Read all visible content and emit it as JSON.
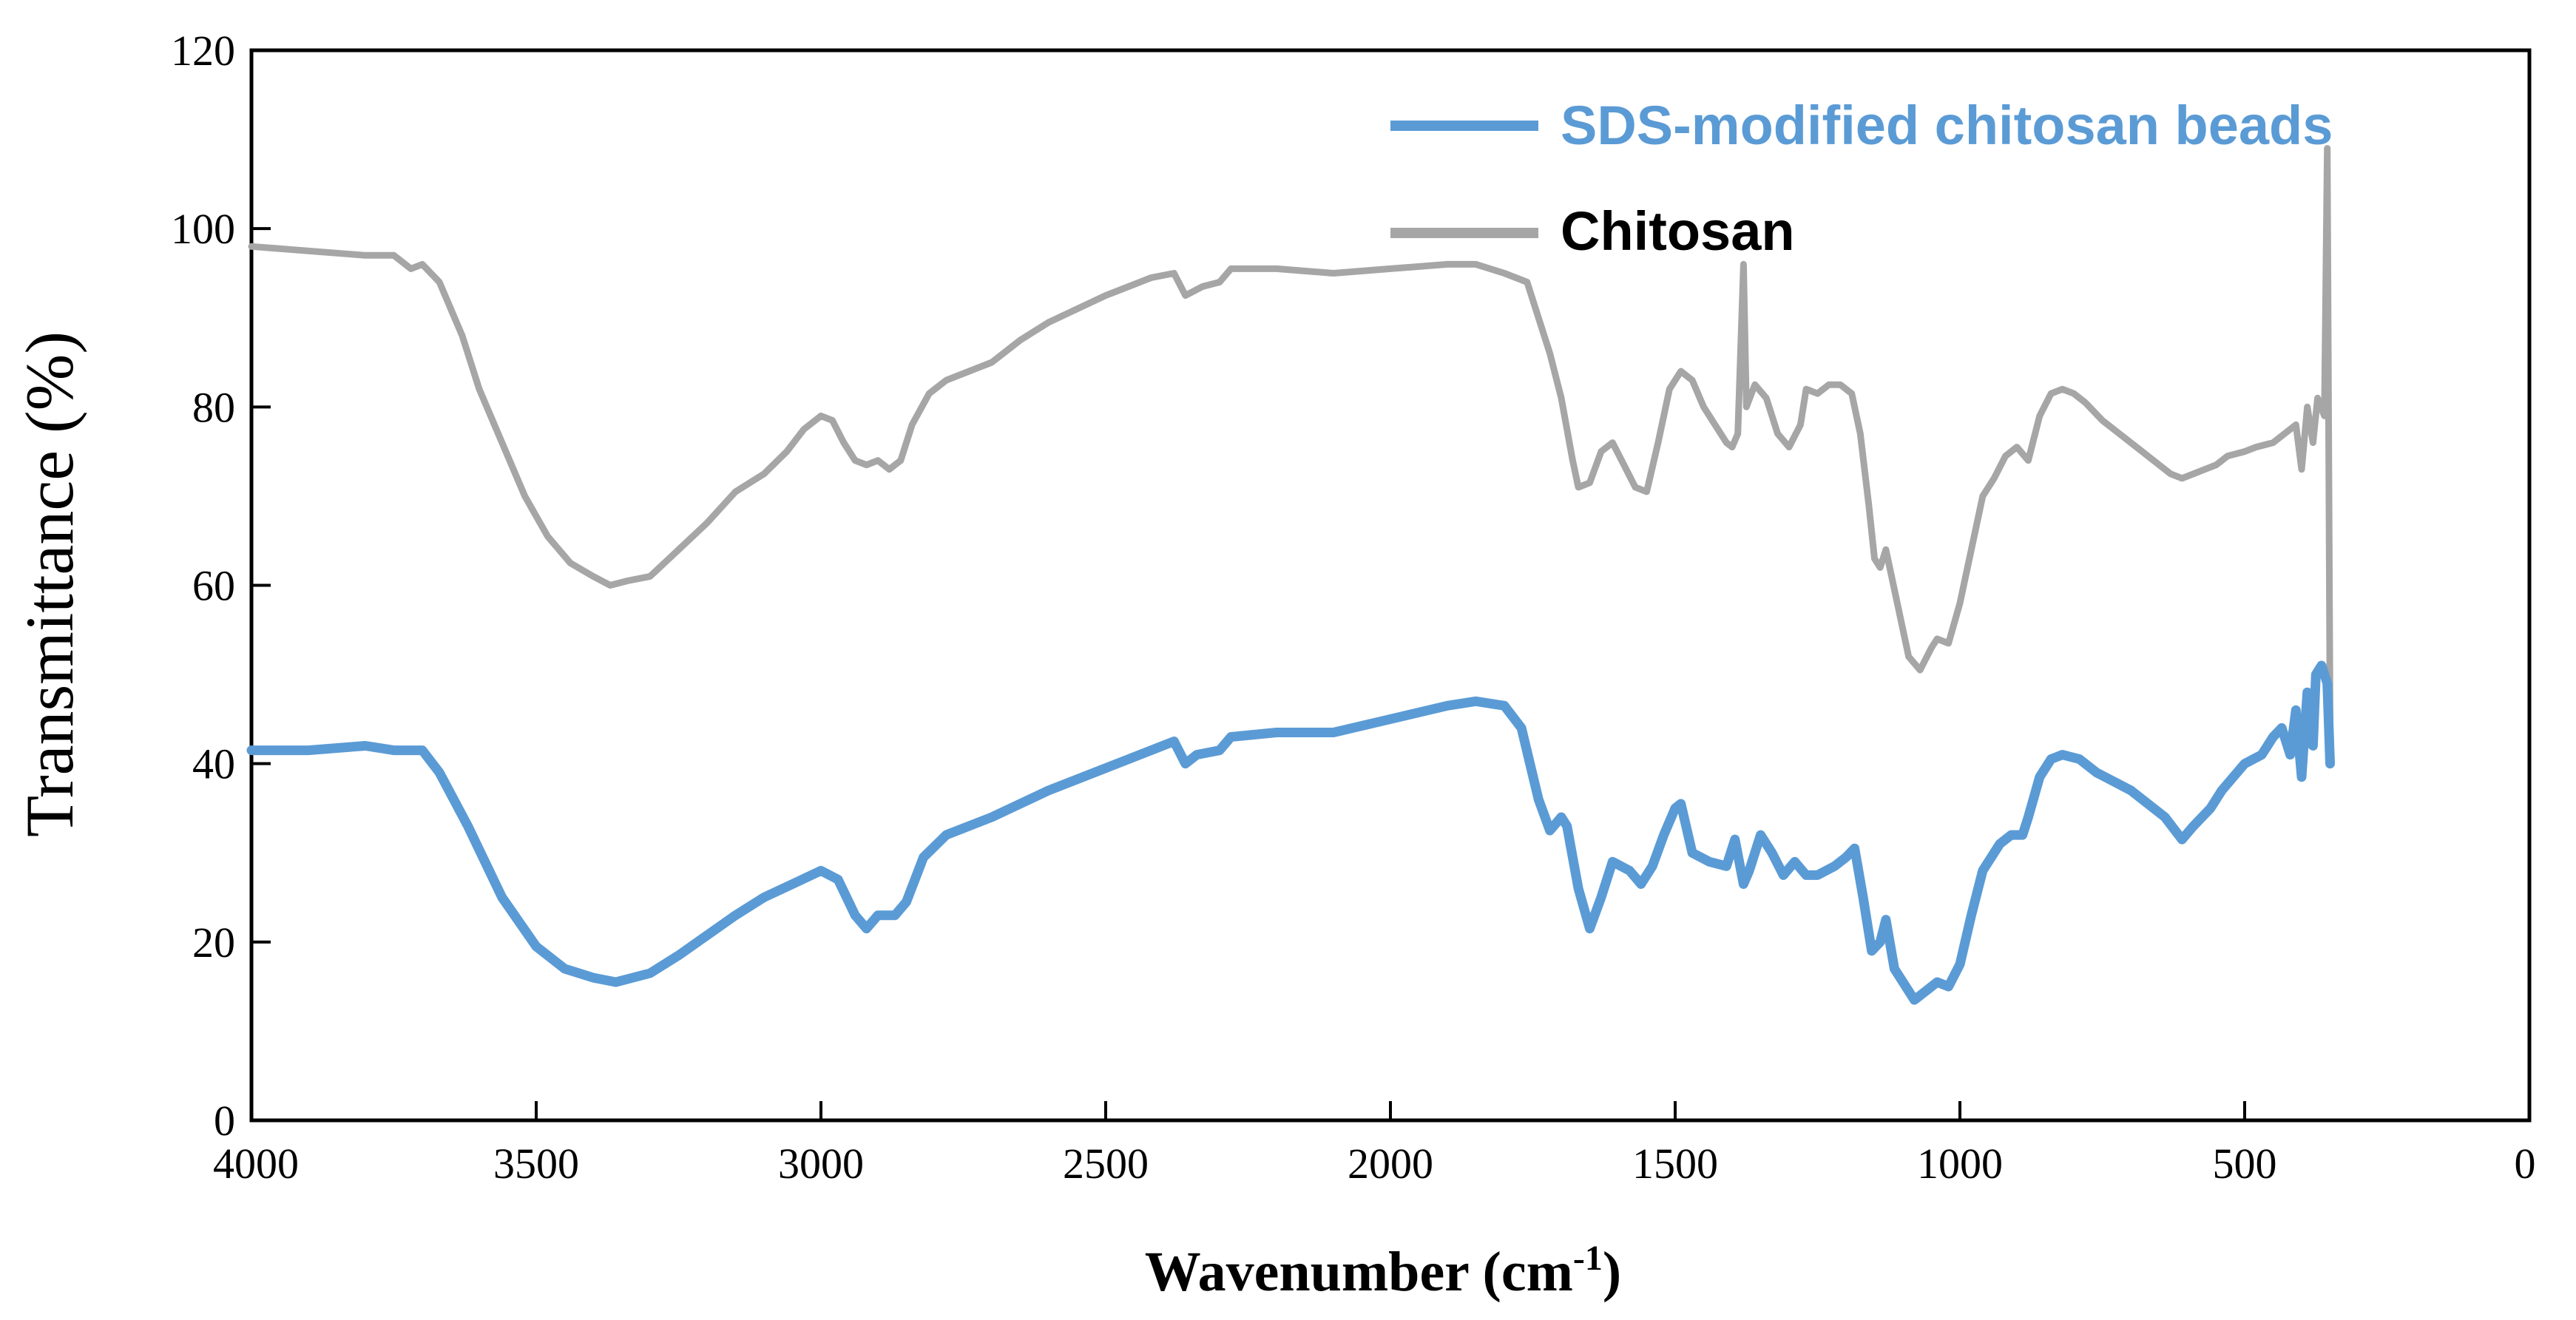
{
  "chart_data": {
    "type": "line",
    "title": "",
    "xlabel": "Wavenumber (cm",
    "xlabel_sup": "-1",
    "xlabel_end": ")",
    "ylabel": "Transmittance (%)",
    "xlim": [
      4000,
      0
    ],
    "ylim": [
      0,
      120
    ],
    "x_ticks": [
      4000,
      3500,
      3000,
      2500,
      2000,
      1500,
      1000,
      500,
      0
    ],
    "y_ticks": [
      0,
      20,
      40,
      60,
      80,
      100,
      120
    ],
    "grid": false,
    "legend_position": "top-right",
    "series": [
      {
        "name": "SDS-modified chitosan beads",
        "color": "#5B9BD5",
        "points": [
          [
            4000,
            41.5
          ],
          [
            3900,
            41.5
          ],
          [
            3800,
            42
          ],
          [
            3750,
            41.5
          ],
          [
            3700,
            41.5
          ],
          [
            3670,
            39
          ],
          [
            3620,
            33
          ],
          [
            3560,
            25
          ],
          [
            3500,
            19.5
          ],
          [
            3450,
            17
          ],
          [
            3400,
            16
          ],
          [
            3360,
            15.5
          ],
          [
            3300,
            16.5
          ],
          [
            3250,
            18.5
          ],
          [
            3150,
            23
          ],
          [
            3100,
            25
          ],
          [
            3050,
            26.5
          ],
          [
            3000,
            28
          ],
          [
            2970,
            27
          ],
          [
            2940,
            23
          ],
          [
            2920,
            21.5
          ],
          [
            2900,
            23
          ],
          [
            2870,
            23
          ],
          [
            2850,
            24.5
          ],
          [
            2820,
            29.5
          ],
          [
            2780,
            32
          ],
          [
            2700,
            34
          ],
          [
            2600,
            37
          ],
          [
            2500,
            39.5
          ],
          [
            2400,
            42
          ],
          [
            2380,
            42.5
          ],
          [
            2360,
            40
          ],
          [
            2340,
            41
          ],
          [
            2300,
            41.5
          ],
          [
            2280,
            43
          ],
          [
            2200,
            43.5
          ],
          [
            2100,
            43.5
          ],
          [
            2000,
            45
          ],
          [
            1900,
            46.5
          ],
          [
            1850,
            47
          ],
          [
            1800,
            46.5
          ],
          [
            1770,
            44
          ],
          [
            1740,
            36
          ],
          [
            1720,
            32.5
          ],
          [
            1700,
            34
          ],
          [
            1690,
            33
          ],
          [
            1670,
            26
          ],
          [
            1650,
            21.5
          ],
          [
            1630,
            25
          ],
          [
            1610,
            29
          ],
          [
            1580,
            28
          ],
          [
            1560,
            26.5
          ],
          [
            1540,
            28.5
          ],
          [
            1520,
            32
          ],
          [
            1500,
            35
          ],
          [
            1490,
            35.5
          ],
          [
            1470,
            30
          ],
          [
            1440,
            29
          ],
          [
            1410,
            28.5
          ],
          [
            1395,
            31.5
          ],
          [
            1380,
            26.5
          ],
          [
            1370,
            28
          ],
          [
            1350,
            32
          ],
          [
            1330,
            30
          ],
          [
            1310,
            27.5
          ],
          [
            1290,
            29
          ],
          [
            1270,
            27.5
          ],
          [
            1250,
            27.5
          ],
          [
            1220,
            28.5
          ],
          [
            1200,
            29.5
          ],
          [
            1185,
            30.5
          ],
          [
            1170,
            25
          ],
          [
            1155,
            19
          ],
          [
            1140,
            20
          ],
          [
            1130,
            22.5
          ],
          [
            1115,
            17
          ],
          [
            1100,
            15.5
          ],
          [
            1080,
            13.5
          ],
          [
            1060,
            14.5
          ],
          [
            1040,
            15.5
          ],
          [
            1020,
            15
          ],
          [
            1000,
            17.5
          ],
          [
            980,
            23
          ],
          [
            960,
            28
          ],
          [
            930,
            31
          ],
          [
            910,
            32
          ],
          [
            890,
            32
          ],
          [
            880,
            34
          ],
          [
            860,
            38.5
          ],
          [
            840,
            40.5
          ],
          [
            820,
            41
          ],
          [
            790,
            40.5
          ],
          [
            760,
            39
          ],
          [
            730,
            38
          ],
          [
            700,
            37
          ],
          [
            670,
            35.5
          ],
          [
            640,
            34
          ],
          [
            610,
            31.5
          ],
          [
            590,
            33
          ],
          [
            560,
            35
          ],
          [
            540,
            37
          ],
          [
            500,
            40
          ],
          [
            470,
            41
          ],
          [
            450,
            43
          ],
          [
            435,
            44
          ],
          [
            420,
            41
          ],
          [
            410,
            46
          ],
          [
            400,
            38.5
          ],
          [
            390,
            48
          ],
          [
            380,
            42
          ],
          [
            375,
            50
          ],
          [
            365,
            51
          ],
          [
            355,
            49
          ],
          [
            350,
            40
          ]
        ]
      },
      {
        "name": "Chitosan",
        "color": "#A6A6A6",
        "points": [
          [
            4000,
            98
          ],
          [
            3900,
            97.5
          ],
          [
            3800,
            97
          ],
          [
            3750,
            97
          ],
          [
            3720,
            95.5
          ],
          [
            3700,
            96
          ],
          [
            3670,
            94
          ],
          [
            3630,
            88
          ],
          [
            3600,
            82
          ],
          [
            3560,
            76
          ],
          [
            3520,
            70
          ],
          [
            3480,
            65.5
          ],
          [
            3440,
            62.5
          ],
          [
            3400,
            61
          ],
          [
            3370,
            60
          ],
          [
            3340,
            60.5
          ],
          [
            3300,
            61
          ],
          [
            3250,
            64
          ],
          [
            3200,
            67
          ],
          [
            3150,
            70.5
          ],
          [
            3100,
            72.5
          ],
          [
            3060,
            75
          ],
          [
            3030,
            77.5
          ],
          [
            3000,
            79
          ],
          [
            2980,
            78.5
          ],
          [
            2960,
            76
          ],
          [
            2940,
            74
          ],
          [
            2920,
            73.5
          ],
          [
            2900,
            74
          ],
          [
            2880,
            73
          ],
          [
            2860,
            74
          ],
          [
            2840,
            78
          ],
          [
            2810,
            81.5
          ],
          [
            2780,
            83
          ],
          [
            2700,
            85
          ],
          [
            2650,
            87.5
          ],
          [
            2600,
            89.5
          ],
          [
            2500,
            92.5
          ],
          [
            2420,
            94.5
          ],
          [
            2380,
            95
          ],
          [
            2360,
            92.5
          ],
          [
            2330,
            93.5
          ],
          [
            2300,
            94
          ],
          [
            2280,
            95.5
          ],
          [
            2200,
            95.5
          ],
          [
            2100,
            95
          ],
          [
            2000,
            95.5
          ],
          [
            1900,
            96
          ],
          [
            1850,
            96
          ],
          [
            1800,
            95
          ],
          [
            1760,
            94
          ],
          [
            1740,
            90
          ],
          [
            1720,
            86
          ],
          [
            1700,
            81
          ],
          [
            1680,
            74
          ],
          [
            1670,
            71
          ],
          [
            1650,
            71.5
          ],
          [
            1630,
            75
          ],
          [
            1610,
            76
          ],
          [
            1590,
            73.5
          ],
          [
            1570,
            71
          ],
          [
            1550,
            70.5
          ],
          [
            1530,
            76
          ],
          [
            1510,
            82
          ],
          [
            1490,
            84
          ],
          [
            1470,
            83
          ],
          [
            1450,
            80
          ],
          [
            1430,
            78
          ],
          [
            1410,
            76
          ],
          [
            1400,
            75.5
          ],
          [
            1390,
            77
          ],
          [
            1380,
            96
          ],
          [
            1375,
            80
          ],
          [
            1360,
            82.5
          ],
          [
            1340,
            81
          ],
          [
            1320,
            77
          ],
          [
            1300,
            75.5
          ],
          [
            1280,
            78
          ],
          [
            1270,
            82
          ],
          [
            1250,
            81.5
          ],
          [
            1230,
            82.5
          ],
          [
            1210,
            82.5
          ],
          [
            1190,
            81.5
          ],
          [
            1175,
            77
          ],
          [
            1160,
            69
          ],
          [
            1150,
            63
          ],
          [
            1140,
            62
          ],
          [
            1130,
            64
          ],
          [
            1120,
            61
          ],
          [
            1110,
            58
          ],
          [
            1090,
            52
          ],
          [
            1070,
            50.5
          ],
          [
            1050,
            53
          ],
          [
            1040,
            54
          ],
          [
            1020,
            53.5
          ],
          [
            1000,
            58
          ],
          [
            980,
            64
          ],
          [
            960,
            70
          ],
          [
            940,
            72
          ],
          [
            920,
            74.5
          ],
          [
            900,
            75.5
          ],
          [
            880,
            74
          ],
          [
            860,
            79
          ],
          [
            840,
            81.5
          ],
          [
            820,
            82
          ],
          [
            800,
            81.5
          ],
          [
            780,
            80.5
          ],
          [
            750,
            78.5
          ],
          [
            720,
            77
          ],
          [
            690,
            75.5
          ],
          [
            660,
            74
          ],
          [
            630,
            72.5
          ],
          [
            610,
            72
          ],
          [
            590,
            72.5
          ],
          [
            570,
            73
          ],
          [
            550,
            73.5
          ],
          [
            530,
            74.5
          ],
          [
            500,
            75
          ],
          [
            480,
            75.5
          ],
          [
            450,
            76
          ],
          [
            430,
            77
          ],
          [
            410,
            78
          ],
          [
            400,
            73
          ],
          [
            390,
            80
          ],
          [
            380,
            76
          ],
          [
            372,
            81
          ],
          [
            360,
            79
          ],
          [
            355,
            109
          ],
          [
            350,
            44
          ]
        ]
      }
    ]
  }
}
